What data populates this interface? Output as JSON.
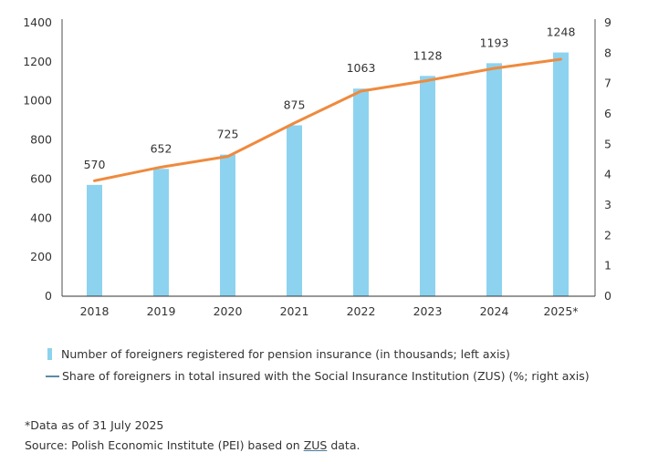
{
  "chart_data": {
    "type": "bar+line",
    "categories": [
      "2018",
      "2019",
      "2020",
      "2021",
      "2022",
      "2023",
      "2024",
      "2025*"
    ],
    "series": [
      {
        "name": "Number of foreigners registered for pension insurance (in thousands; left axis)",
        "type": "bar",
        "axis": "left",
        "values": [
          570,
          652,
          725,
          875,
          1063,
          1128,
          1193,
          1248
        ],
        "color": "#8dd3ef"
      },
      {
        "name": "Share of foreigners in total insured with the Social Insurance Institution (ZUS) (%; right axis)",
        "type": "line",
        "axis": "right",
        "values": [
          3.8,
          4.25,
          4.6,
          5.7,
          6.75,
          7.1,
          7.5,
          7.8
        ],
        "color": "#ef8a3e"
      }
    ],
    "left_axis": {
      "ylim": [
        0,
        1400
      ],
      "ticks": [
        "0",
        "200",
        "400",
        "600",
        "800",
        "1000",
        "1200",
        "1400"
      ]
    },
    "right_axis": {
      "ylim": [
        0,
        9
      ],
      "ticks": [
        "0",
        "1",
        "2",
        "3",
        "4",
        "5",
        "6",
        "7",
        "8",
        "9"
      ]
    },
    "data_labels": [
      "570",
      "652",
      "725",
      "875",
      "1063",
      "1128",
      "1193",
      "1248"
    ],
    "grid": false,
    "legend_placement": "bottom-left",
    "title": "",
    "xlabel": "",
    "ylabel": ""
  },
  "legend": {
    "bar_label": "Number of foreigners registered for pension insurance (in thousands; left axis)",
    "line_label": "Share of foreigners in total insured with the Social Insurance Institution (ZUS) (%; right axis)",
    "line_legend_color": "#5b8aa6"
  },
  "notes": {
    "footnote": "*Data as of 31 July 2025",
    "source_prefix": "Source: Polish Economic Institute (PEI) based on ",
    "source_link": "ZUS",
    "source_suffix": " data."
  }
}
